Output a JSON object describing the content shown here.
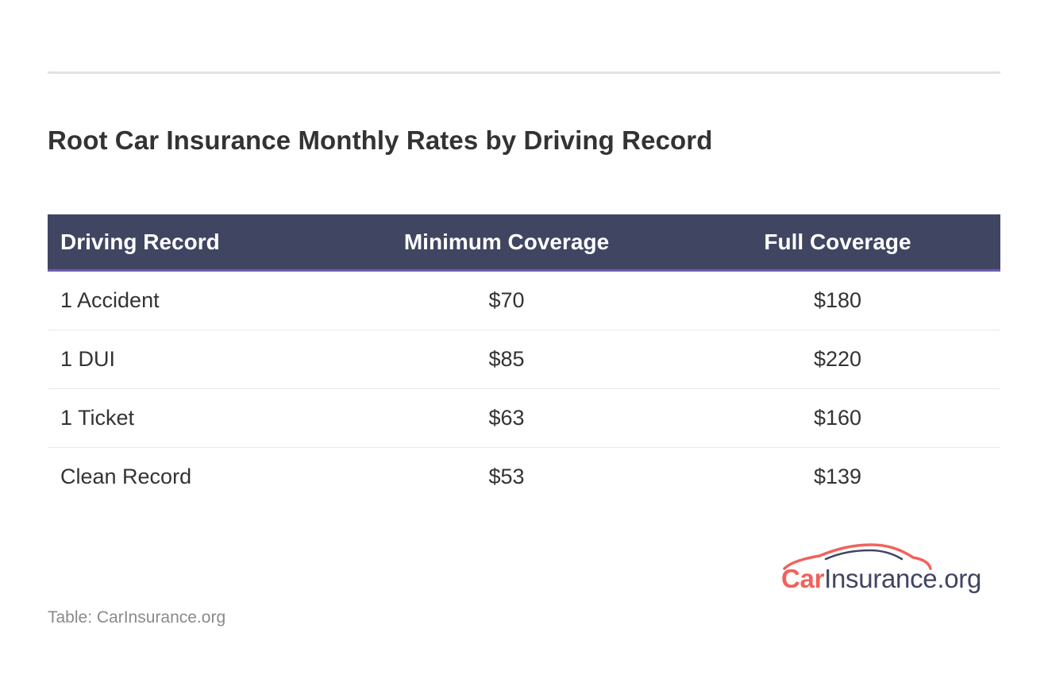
{
  "title": "Root Car Insurance Monthly Rates by Driving Record",
  "table": {
    "headers": [
      "Driving Record",
      "Minimum Coverage",
      "Full Coverage"
    ],
    "rows": [
      [
        "1 Accident",
        "$70",
        "$180"
      ],
      [
        "1 DUI",
        "$85",
        "$220"
      ],
      [
        "1 Ticket",
        "$63",
        "$160"
      ],
      [
        "Clean Record",
        "$53",
        "$139"
      ]
    ]
  },
  "logo": {
    "car_word": "Car",
    "rest_word": "Insurance.org",
    "icon": "car-silhouette-icon"
  },
  "source": "Table: CarInsurance.org",
  "colors": {
    "header_bg": "#404562",
    "header_accent": "#6c5cb0",
    "brand_red": "#f0625d",
    "brand_navy": "#404562"
  }
}
